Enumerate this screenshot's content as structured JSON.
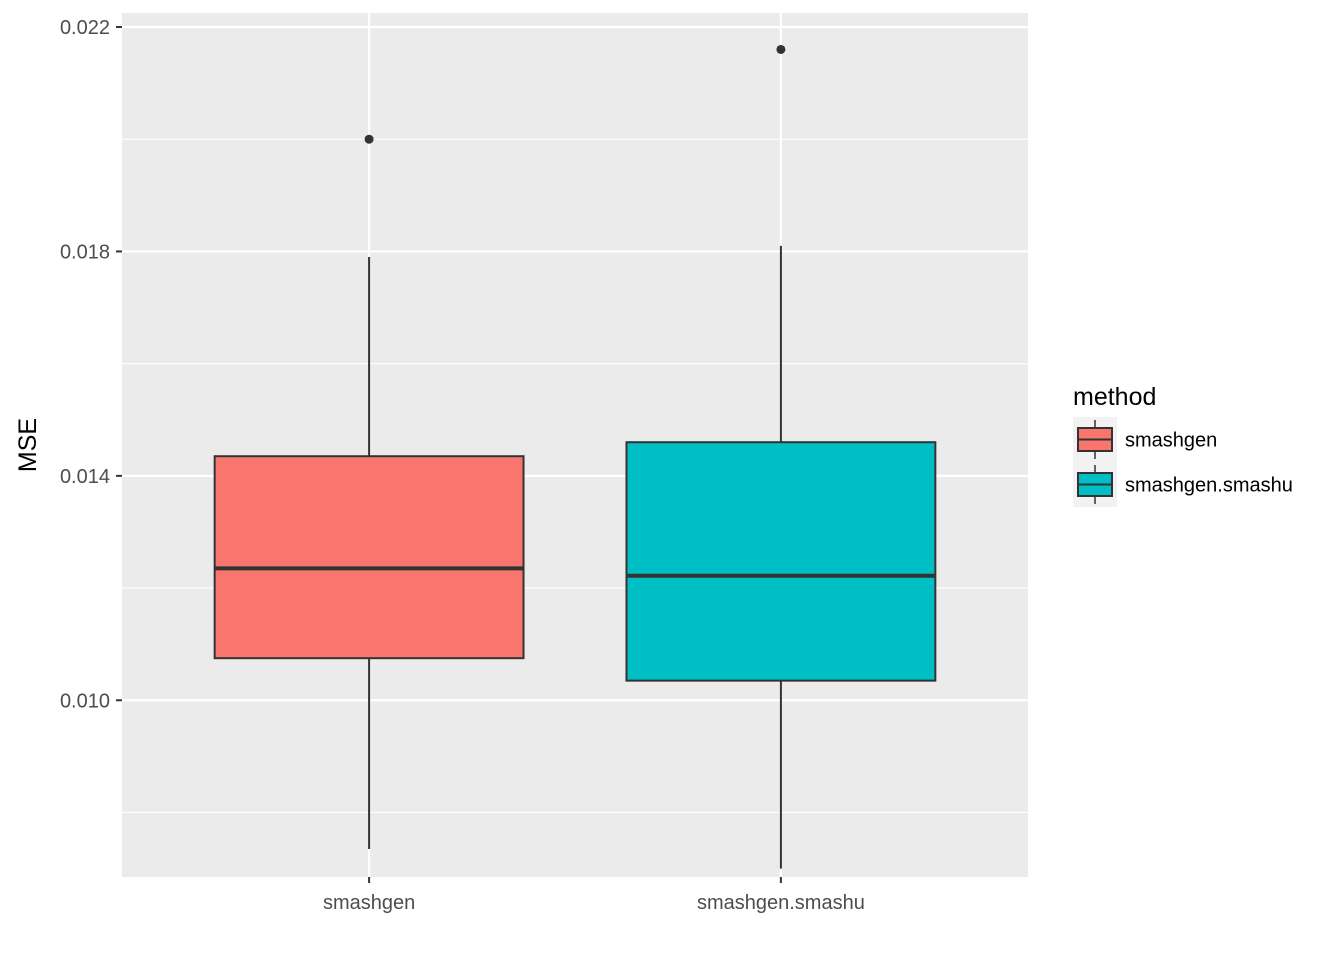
{
  "chart_data": {
    "type": "boxplot",
    "title": "",
    "xlabel": "",
    "ylabel": "MSE",
    "categories": [
      "smashgen",
      "smashgen.smashu"
    ],
    "ylim": [
      0.00685,
      0.02225
    ],
    "yticks": [
      0.01,
      0.014,
      0.018,
      0.022
    ],
    "ytick_labels": [
      "0.010",
      "0.014",
      "0.018",
      "0.022"
    ],
    "grid": true,
    "legend": {
      "title": "method",
      "position": "right",
      "entries": [
        "smashgen",
        "smashgen.smashu"
      ]
    },
    "series": [
      {
        "name": "smashgen",
        "color": "#F8766D",
        "whisker_low": 0.00735,
        "q1": 0.01075,
        "median": 0.01235,
        "q3": 0.01435,
        "whisker_high": 0.0179,
        "outliers": [
          0.02
        ]
      },
      {
        "name": "smashgen.smashu",
        "color": "#00BFC4",
        "whisker_low": 0.007,
        "q1": 0.01035,
        "median": 0.01222,
        "q3": 0.0146,
        "whisker_high": 0.0181,
        "outliers": [
          0.0216
        ]
      }
    ]
  }
}
